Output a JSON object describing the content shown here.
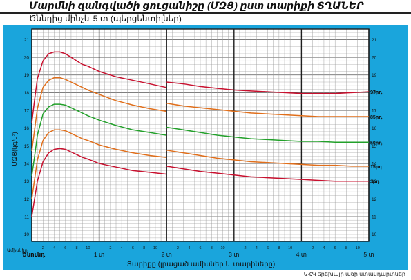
{
  "header": {
    "title": "Մարմնի զանգվածի ցուցանիշը (ՄԶՑ) ըստ տարիքի  ՏՂԱՆԵՐ",
    "subtitle": "Ծննդից մինչև 5 տ (պերցենտիլներ)"
  },
  "footer": {
    "source": "ԱՀԿ երեխայի աճի ստանդարտներ"
  },
  "colors": {
    "panel_bg": "#1aa5dc",
    "grid_bg": "#ffffff",
    "grid_minor": "#9a9a9a",
    "grid_major": "#1e1e1e",
    "p97": "#c8102e",
    "p85": "#e06e1a",
    "p50": "#22a02a",
    "p15": "#e06e1a",
    "p3": "#c8102e"
  },
  "chart_data": {
    "type": "line",
    "title": "",
    "ylabel": "ՄԶՑ(կգ/մ²)",
    "xlabel": "Տարիքը (լրացած ամիսներ և տարիները)",
    "x_unit_label": "Ամիսներ",
    "ylim": [
      9.6,
      21.6
    ],
    "xlim": [
      0,
      60
    ],
    "y_ticks": [
      10,
      11,
      12,
      13,
      14,
      15,
      16,
      17,
      18,
      19,
      20,
      21
    ],
    "x_major_ticks": [
      {
        "month": 0,
        "label": "Ծնունդ"
      },
      {
        "month": 12,
        "label": "1 տ"
      },
      {
        "month": 24,
        "label": "2 տ"
      },
      {
        "month": 36,
        "label": "3 տ"
      },
      {
        "month": 48,
        "label": "4 տ"
      },
      {
        "month": 60,
        "label": "5 տ"
      }
    ],
    "x_minor_labels": [
      "2",
      "4",
      "6",
      "8",
      "10"
    ],
    "grid": true,
    "series": [
      {
        "name": "97րդ",
        "color_key": "p97",
        "x": [
          0,
          0.5,
          1,
          2,
          3,
          4,
          5,
          6,
          7,
          8,
          9,
          10,
          12,
          15,
          18,
          21,
          23.9,
          24,
          27,
          30,
          33,
          36,
          39,
          42,
          45,
          48,
          51,
          54,
          57,
          60
        ],
        "y": [
          16.3,
          17.6,
          18.8,
          19.8,
          20.2,
          20.3,
          20.3,
          20.2,
          20.0,
          19.8,
          19.6,
          19.5,
          19.2,
          18.9,
          18.7,
          18.5,
          18.3,
          18.6,
          18.5,
          18.35,
          18.25,
          18.15,
          18.1,
          18.05,
          18.0,
          17.95,
          17.95,
          17.95,
          18.0,
          18.05
        ]
      },
      {
        "name": "85րդ",
        "color_key": "p85",
        "x": [
          0,
          0.5,
          1,
          2,
          3,
          4,
          5,
          6,
          7,
          8,
          9,
          10,
          12,
          15,
          18,
          21,
          23.9,
          24,
          27,
          30,
          33,
          36,
          39,
          42,
          45,
          48,
          51,
          54,
          57,
          60
        ],
        "y": [
          14.7,
          15.9,
          17.1,
          18.3,
          18.7,
          18.85,
          18.85,
          18.75,
          18.6,
          18.45,
          18.3,
          18.15,
          17.9,
          17.55,
          17.3,
          17.1,
          16.95,
          17.4,
          17.25,
          17.15,
          17.05,
          16.95,
          16.85,
          16.8,
          16.75,
          16.7,
          16.65,
          16.65,
          16.65,
          16.65
        ]
      },
      {
        "name": "50րդ",
        "color_key": "p50",
        "x": [
          0,
          0.5,
          1,
          2,
          3,
          4,
          5,
          6,
          7,
          8,
          9,
          10,
          12,
          15,
          18,
          21,
          23.9,
          24,
          27,
          30,
          33,
          36,
          39,
          42,
          45,
          48,
          51,
          54,
          57,
          60
        ],
        "y": [
          13.3,
          14.4,
          15.6,
          16.8,
          17.2,
          17.35,
          17.35,
          17.3,
          17.15,
          17.0,
          16.85,
          16.7,
          16.45,
          16.15,
          15.9,
          15.75,
          15.6,
          16.05,
          15.9,
          15.75,
          15.6,
          15.5,
          15.4,
          15.35,
          15.3,
          15.25,
          15.25,
          15.2,
          15.2,
          15.2
        ]
      },
      {
        "name": "15րդ",
        "color_key": "p15",
        "x": [
          0,
          0.5,
          1,
          2,
          3,
          4,
          5,
          6,
          7,
          8,
          9,
          10,
          12,
          15,
          18,
          21,
          23.9,
          24,
          27,
          30,
          33,
          36,
          39,
          42,
          45,
          48,
          51,
          54,
          57,
          60
        ],
        "y": [
          12.0,
          13.1,
          14.2,
          15.3,
          15.75,
          15.9,
          15.9,
          15.85,
          15.7,
          15.55,
          15.4,
          15.3,
          15.05,
          14.8,
          14.6,
          14.45,
          14.35,
          14.75,
          14.6,
          14.45,
          14.3,
          14.2,
          14.1,
          14.05,
          14.0,
          13.95,
          13.9,
          13.9,
          13.85,
          13.85
        ]
      },
      {
        "name": "3րդ",
        "color_key": "p3",
        "x": [
          0,
          0.5,
          1,
          2,
          3,
          4,
          5,
          6,
          7,
          8,
          9,
          10,
          12,
          15,
          18,
          21,
          23.9,
          24,
          27,
          30,
          33,
          36,
          39,
          42,
          45,
          48,
          51,
          54,
          57,
          60
        ],
        "y": [
          11.0,
          12.0,
          13.0,
          14.1,
          14.6,
          14.8,
          14.85,
          14.8,
          14.65,
          14.5,
          14.35,
          14.25,
          14.0,
          13.8,
          13.6,
          13.5,
          13.4,
          13.85,
          13.7,
          13.55,
          13.45,
          13.35,
          13.25,
          13.2,
          13.15,
          13.1,
          13.05,
          13.0,
          13.0,
          13.0
        ]
      }
    ]
  }
}
